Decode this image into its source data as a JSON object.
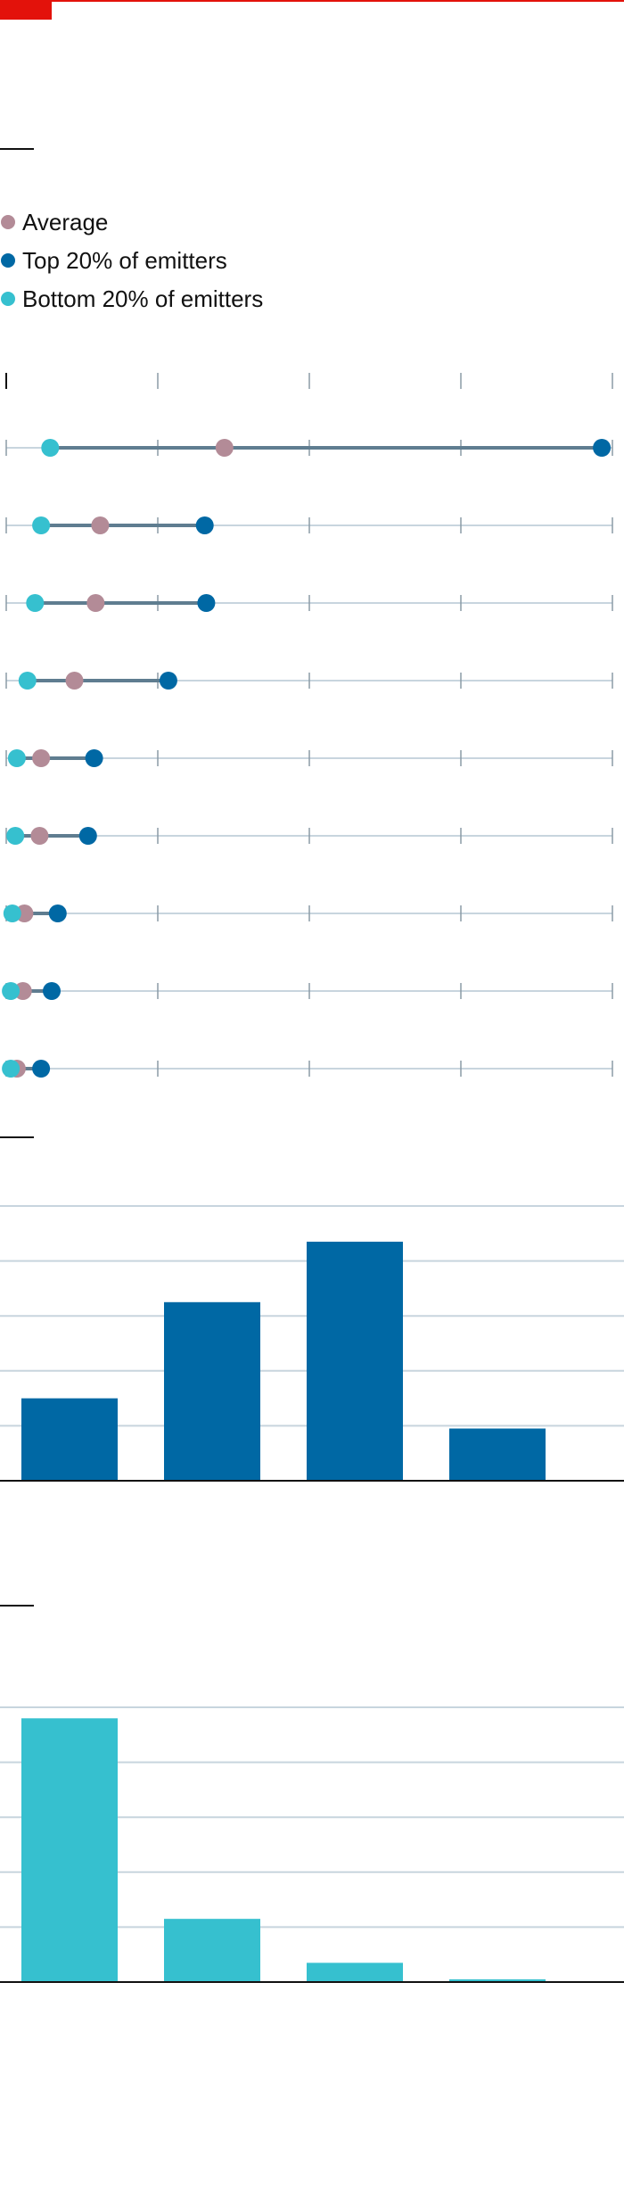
{
  "legend": {
    "items": [
      {
        "label": "Average",
        "color": "#b38b97"
      },
      {
        "label": "Top 20% of emitters",
        "color": "#0068a4"
      },
      {
        "label": "Bottom 20% of emitters",
        "color": "#36c0cf"
      }
    ]
  },
  "colors": {
    "accent_red": "#e3120b",
    "avg": "#b38b97",
    "top": "#0068a4",
    "bottom": "#36c0cf",
    "range_line": "#5f7d90",
    "grid": "#c8d5de",
    "tick": "#8a9aa6",
    "baseline": "#111111"
  },
  "chart_data": [
    {
      "type": "dot-range",
      "legend": [
        "Average",
        "Top 20% of emitters",
        "Bottom 20% of emitters"
      ],
      "xlim": [
        0,
        4
      ],
      "grid": true,
      "rows": [
        {
          "bottom": 0.29,
          "avg": 1.44,
          "top": 3.93
        },
        {
          "bottom": 0.23,
          "avg": 0.62,
          "top": 1.31
        },
        {
          "bottom": 0.19,
          "avg": 0.59,
          "top": 1.32
        },
        {
          "bottom": 0.14,
          "avg": 0.45,
          "top": 1.07
        },
        {
          "bottom": 0.07,
          "avg": 0.23,
          "top": 0.58
        },
        {
          "bottom": 0.06,
          "avg": 0.22,
          "top": 0.54
        },
        {
          "bottom": 0.04,
          "avg": 0.12,
          "top": 0.34
        },
        {
          "bottom": 0.03,
          "avg": 0.11,
          "top": 0.3
        },
        {
          "bottom": 0.03,
          "avg": 0.07,
          "top": 0.23
        }
      ]
    },
    {
      "type": "bar",
      "ylim": [
        0,
        5
      ],
      "grid": true,
      "values": [
        1.5,
        3.25,
        4.35,
        0.95
      ],
      "color": "#0068a4"
    },
    {
      "type": "bar",
      "ylim": [
        0,
        5
      ],
      "grid": true,
      "values": [
        4.8,
        1.15,
        0.35,
        0.05
      ],
      "color": "#36c0cf"
    }
  ]
}
